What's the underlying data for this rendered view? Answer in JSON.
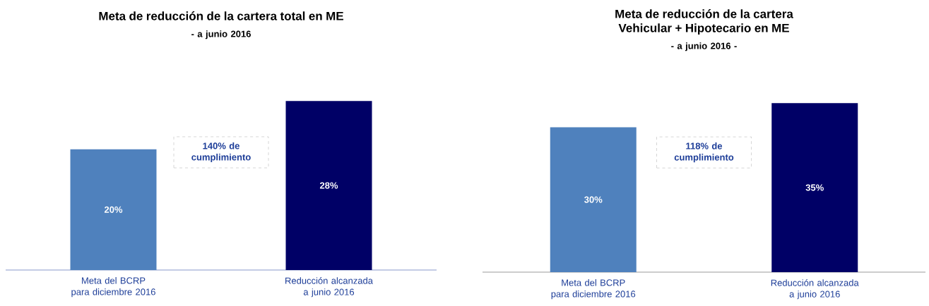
{
  "chart_data": [
    {
      "type": "bar",
      "title": "Meta de reducción de la cartera total en ME",
      "subtitle": "- a junio 2016",
      "categories": [
        "Meta del BCRP para diciembre 2016",
        "Reducción alcanzada a junio 2016"
      ],
      "values": [
        20,
        28
      ],
      "colors": [
        "#4f81bd",
        "#000066"
      ],
      "value_labels": [
        "20%",
        "28%"
      ],
      "annotations": [
        "140% de cumplimiento"
      ]
    },
    {
      "type": "bar",
      "title": "Meta de reducción de la cartera Vehicular + Hipotecario en ME",
      "subtitle": "- a junio 2016 -",
      "categories": [
        "Meta del BCRP para diciembre 2016",
        "Reducción alcanzada a junio 2016"
      ],
      "values": [
        30,
        35
      ],
      "colors": [
        "#4f81bd",
        "#000066"
      ],
      "value_labels": [
        "30%",
        "35%"
      ],
      "annotations": [
        "118% de cumplimiento"
      ]
    }
  ]
}
